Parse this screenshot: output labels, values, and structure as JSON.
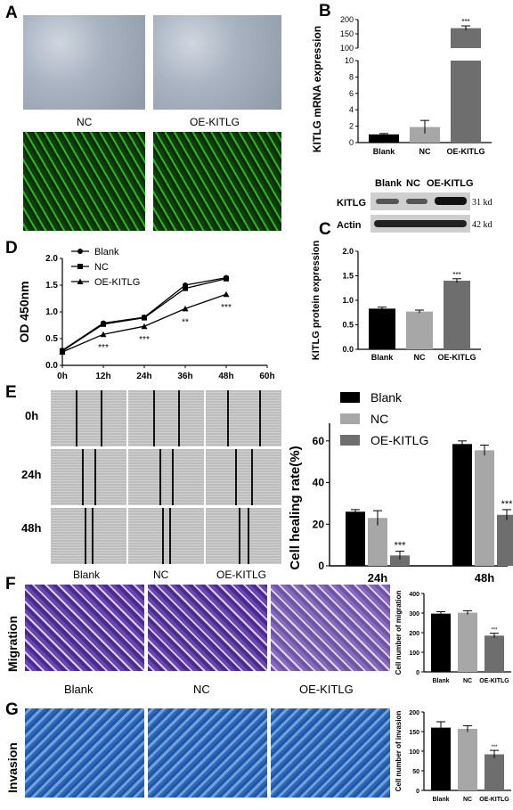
{
  "panels": {
    "A": {
      "label": "A",
      "captions": [
        "NC",
        "OE-KITLG"
      ]
    },
    "B": {
      "label": "B",
      "chart": {
        "type": "bar",
        "ylabel": "KITLG mRNA expression",
        "categories": [
          "Blank",
          "NC",
          "OE-KITLG"
        ],
        "values": [
          1.0,
          1.9,
          170
        ],
        "errors": [
          0.1,
          0.8,
          8
        ],
        "sig": [
          "",
          "",
          "***"
        ],
        "yticks_low": [
          "0",
          "2",
          "4",
          "6",
          "8",
          "10"
        ],
        "yticks_high": [
          "100",
          "150",
          "200"
        ]
      }
    },
    "blot": {
      "headers": [
        "Blank",
        "NC",
        "OE-KITLG"
      ],
      "rows": [
        {
          "name": "KITLG",
          "kd": "31 kd"
        },
        {
          "name": "Actin",
          "kd": "42 kd"
        }
      ]
    },
    "C": {
      "label": "C",
      "chart": {
        "type": "bar",
        "ylabel": "KITLG protein expression",
        "categories": [
          "Blank",
          "NC",
          "OE-KITLG"
        ],
        "values": [
          0.83,
          0.77,
          1.4
        ],
        "errors": [
          0.03,
          0.03,
          0.04
        ],
        "sig": [
          "",
          "",
          "***"
        ],
        "yticks": [
          "0.0",
          "0.5",
          "1.0",
          "1.5",
          "2.0"
        ]
      }
    },
    "D": {
      "label": "D",
      "chart": {
        "type": "line",
        "ylabel": "OD 450nm",
        "xticks": [
          "0h",
          "12h",
          "24h",
          "36h",
          "48h",
          "60h"
        ],
        "yticks": [
          "0.0",
          "0.5",
          "1.0",
          "1.5",
          "2.0"
        ],
        "series": [
          {
            "name": "Blank",
            "x": [
              0,
              12,
              24,
              36,
              48
            ],
            "values": [
              0.28,
              0.79,
              0.9,
              1.5,
              1.64
            ]
          },
          {
            "name": "NC",
            "x": [
              0,
              12,
              24,
              36,
              48
            ],
            "values": [
              0.27,
              0.77,
              0.89,
              1.44,
              1.62
            ]
          },
          {
            "name": "OE-KITLG",
            "x": [
              0,
              12,
              24,
              36,
              48
            ],
            "values": [
              0.25,
              0.58,
              0.73,
              1.06,
              1.33
            ]
          }
        ],
        "sig": [
          "",
          "***",
          "***",
          "**",
          "***"
        ]
      }
    },
    "E": {
      "label": "E",
      "rows": [
        "0h",
        "24h",
        "48h"
      ],
      "captions": [
        "Blank",
        "NC",
        "OE-KITLG"
      ],
      "chart": {
        "type": "bar",
        "ylabel": "Cell healing rate(%)",
        "categories": [
          "24h",
          "48h"
        ],
        "yticks": [
          "0",
          "20",
          "40",
          "60"
        ],
        "series": [
          {
            "name": "Blank",
            "values": [
              26,
              58.5
            ],
            "errors": [
              1,
              1.5
            ]
          },
          {
            "name": "NC",
            "values": [
              23,
              55.5
            ],
            "errors": [
              3.5,
              2.5
            ]
          },
          {
            "name": "OE-KITLG",
            "values": [
              5,
              24.5
            ],
            "errors": [
              2,
              2.5
            ]
          }
        ],
        "sig": [
          "***",
          "***"
        ]
      }
    },
    "F": {
      "label": "F",
      "rowlabel": "Migration",
      "chart": {
        "type": "bar",
        "ylabel": "Cell number of migration",
        "categories": [
          "Blank",
          "NC",
          "OE-KITLG"
        ],
        "values": [
          297,
          302,
          185
        ],
        "errors": [
          10,
          10,
          12
        ],
        "sig": [
          "",
          "",
          "***"
        ],
        "yticks": [
          "0",
          "100",
          "200",
          "300",
          "400"
        ]
      }
    },
    "G": {
      "label": "G",
      "rowlabel": "Invasion",
      "captions": [
        "Blank",
        "NC",
        "OE-KITLG"
      ],
      "chart": {
        "type": "bar",
        "ylabel": "Cell number of invasion",
        "categories": [
          "Blank",
          "NC",
          "OE-KITLG"
        ],
        "values": [
          160,
          157,
          92
        ],
        "errors": [
          15,
          8,
          10
        ],
        "sig": [
          "",
          "",
          "***"
        ],
        "yticks": [
          "0",
          "50",
          "100",
          "150",
          "200"
        ]
      }
    }
  },
  "colors": {
    "black": "#000000",
    "gray": "#a7a7a7",
    "darkgray": "#6e6e6e"
  }
}
